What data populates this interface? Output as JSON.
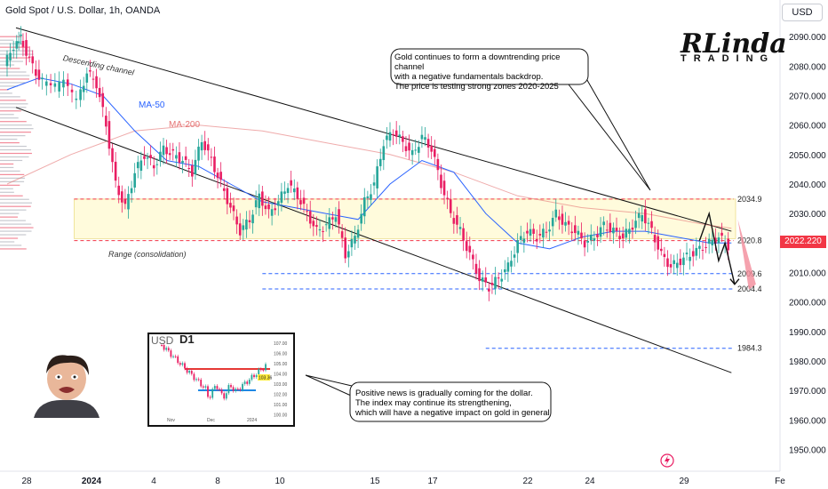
{
  "header": {
    "symbol_line": "Gold Spot / U.S. Dollar, 1h, OANDA",
    "currency_button": "USD"
  },
  "logo": {
    "text": "Linda",
    "monogram": "R",
    "sub": "TRADING"
  },
  "notes": {
    "top": "Gold continues to form a downtrending price channel\nwith a negative fundamentals backdrop.\nThe price is testing strong zones 2020-2025",
    "bottom": "Positive news is gradually coming for the dollar.\nThe index may continue its strengthening,\nwhich will have a negative impact on gold in general"
  },
  "chart_labels": {
    "channel": "Descending channel",
    "ma50": "MA-50",
    "ma200": "MA-200",
    "range": "Range (consolidation)"
  },
  "current_price": "2022.220",
  "colors": {
    "up": "#26a69a",
    "down": "#e91e63",
    "ma50": "#2962ff",
    "ma200": "#e57373",
    "range_fill": "#fff9c4",
    "level_red": "#f23645",
    "level_blue": "#2962ff"
  },
  "chart_data": {
    "type": "candlestick",
    "ylim": [
      1945,
      2097
    ],
    "y_ticks": [
      1950,
      1960,
      1970,
      1980,
      1990,
      2000,
      2010,
      2020,
      2030,
      2040,
      2050,
      2060,
      2070,
      2080,
      2090
    ],
    "y_tick_labels": [
      "1950.000",
      "1960.000",
      "1970.000",
      "1980.000",
      "1990.000",
      "2000.000",
      "2010.000",
      "2020.000",
      "2030.000",
      "2040.000",
      "2050.000",
      "2060.000",
      "2070.000",
      "2080.000",
      "2090.000"
    ],
    "x_ticks": [
      "28",
      "2024",
      "4",
      "8",
      "10",
      "15",
      "17",
      "22",
      "24",
      "29",
      "Fe"
    ],
    "levels": [
      {
        "value": 2034.9,
        "label": "2034.9",
        "style": "red-dashed"
      },
      {
        "value": 2020.8,
        "label": "2020.8",
        "style": "red-dashed"
      },
      {
        "value": 2009.6,
        "label": "2009.6",
        "style": "blue-dashed"
      },
      {
        "value": 2004.4,
        "label": "2004.4",
        "style": "blue-dashed"
      },
      {
        "value": 1984.3,
        "label": "1984.3",
        "style": "blue-dashed"
      }
    ],
    "range_zone": [
      2021.5,
      2034.9
    ],
    "price_path": [
      [
        0,
        2080
      ],
      [
        6,
        2087
      ],
      [
        10,
        2090
      ],
      [
        16,
        2082
      ],
      [
        22,
        2076
      ],
      [
        30,
        2072
      ],
      [
        38,
        2074
      ],
      [
        46,
        2068
      ],
      [
        52,
        2078
      ],
      [
        58,
        2074
      ],
      [
        64,
        2060
      ],
      [
        70,
        2040
      ],
      [
        76,
        2032
      ],
      [
        82,
        2044
      ],
      [
        88,
        2050
      ],
      [
        94,
        2046
      ],
      [
        100,
        2052
      ],
      [
        106,
        2050
      ],
      [
        112,
        2048
      ],
      [
        118,
        2044
      ],
      [
        124,
        2055
      ],
      [
        130,
        2048
      ],
      [
        136,
        2040
      ],
      [
        142,
        2032
      ],
      [
        148,
        2024
      ],
      [
        154,
        2028
      ],
      [
        160,
        2036
      ],
      [
        166,
        2030
      ],
      [
        172,
        2034
      ],
      [
        178,
        2040
      ],
      [
        184,
        2036
      ],
      [
        190,
        2030
      ],
      [
        196,
        2024
      ],
      [
        202,
        2026
      ],
      [
        208,
        2030
      ],
      [
        214,
        2016
      ],
      [
        220,
        2022
      ],
      [
        226,
        2034
      ],
      [
        232,
        2040
      ],
      [
        238,
        2054
      ],
      [
        244,
        2058
      ],
      [
        250,
        2054
      ],
      [
        256,
        2050
      ],
      [
        262,
        2056
      ],
      [
        268,
        2052
      ],
      [
        274,
        2040
      ],
      [
        280,
        2030
      ],
      [
        286,
        2024
      ],
      [
        292,
        2016
      ],
      [
        298,
        2008
      ],
      [
        304,
        2005
      ],
      [
        310,
        2008
      ],
      [
        316,
        2012
      ],
      [
        322,
        2020
      ],
      [
        328,
        2024
      ],
      [
        334,
        2022
      ],
      [
        340,
        2024
      ],
      [
        346,
        2030
      ],
      [
        352,
        2026
      ],
      [
        358,
        2024
      ],
      [
        364,
        2020
      ],
      [
        370,
        2022
      ],
      [
        376,
        2026
      ],
      [
        382,
        2024
      ],
      [
        388,
        2022
      ],
      [
        394,
        2026
      ],
      [
        400,
        2030
      ],
      [
        406,
        2024
      ],
      [
        412,
        2016
      ],
      [
        418,
        2012
      ],
      [
        424,
        2014
      ],
      [
        430,
        2016
      ],
      [
        436,
        2018
      ],
      [
        442,
        2020
      ],
      [
        448,
        2022
      ],
      [
        454,
        2019
      ]
    ],
    "ma50_path": [
      [
        0,
        2072
      ],
      [
        20,
        2076
      ],
      [
        40,
        2074
      ],
      [
        60,
        2070
      ],
      [
        80,
        2058
      ],
      [
        100,
        2048
      ],
      [
        120,
        2046
      ],
      [
        140,
        2040
      ],
      [
        160,
        2034
      ],
      [
        180,
        2032
      ],
      [
        200,
        2030
      ],
      [
        220,
        2028
      ],
      [
        240,
        2040
      ],
      [
        260,
        2048
      ],
      [
        280,
        2044
      ],
      [
        300,
        2030
      ],
      [
        320,
        2020
      ],
      [
        340,
        2018
      ],
      [
        360,
        2022
      ],
      [
        380,
        2024
      ],
      [
        400,
        2024
      ],
      [
        420,
        2022
      ],
      [
        440,
        2020
      ],
      [
        454,
        2020
      ]
    ],
    "ma200_path": [
      [
        0,
        2040
      ],
      [
        40,
        2050
      ],
      [
        80,
        2058
      ],
      [
        120,
        2060
      ],
      [
        160,
        2058
      ],
      [
        200,
        2054
      ],
      [
        240,
        2050
      ],
      [
        280,
        2044
      ],
      [
        320,
        2036
      ],
      [
        360,
        2032
      ],
      [
        400,
        2030
      ],
      [
        440,
        2026
      ],
      [
        454,
        2025
      ]
    ],
    "channel": {
      "upper": [
        [
          0,
          2093
        ],
        [
          454,
          2024
        ]
      ],
      "lower": [
        [
          0,
          2066
        ],
        [
          454,
          1976
        ]
      ]
    },
    "forecast": {
      "black": [
        [
          434,
          2020.8
        ],
        [
          440,
          2030
        ],
        [
          446,
          2014
        ],
        [
          450,
          2020
        ],
        [
          456,
          2006
        ]
      ],
      "red": [
        [
          458,
          2028
        ],
        [
          466,
          2006
        ]
      ]
    }
  },
  "inset": {
    "currency": "USD",
    "timeframe": "D1",
    "x_labels": [
      "Nov",
      "Dec",
      "2024"
    ],
    "y_labels": [
      "107.00",
      "106.00",
      "105.00",
      "104.00",
      "103.00",
      "102.00",
      "101.00",
      "100.00"
    ],
    "marker": "103.36"
  }
}
